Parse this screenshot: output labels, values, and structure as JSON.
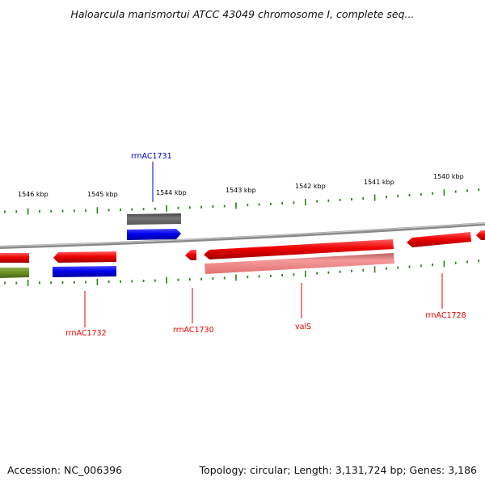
{
  "title": "Haloarcula marismortui ATCC 43049 chromosome I, complete seq...",
  "footer": {
    "accession": "Accession: NC_006396",
    "summary": "Topology: circular; Length: 3,131,724 bp; Genes: 3,186"
  },
  "kbp_labels": [
    "1546 kbp",
    "1545 kbp",
    "1544 kbp",
    "1543 kbp",
    "1542 kbp",
    "1541 kbp",
    "1540 kbp"
  ],
  "gene_labels": {
    "rrnAC1731": "rrnAC1731",
    "rrnAC1732": "rrnAC1732",
    "rrnAC1730": "rrnAC1730",
    "valS": "valS",
    "rrnAC1728": "rrnAC1728"
  },
  "colors": {
    "red": "#e60000",
    "pink": "#f08080",
    "blue": "#0000e0",
    "gray": "#666666",
    "olive": "#6b8e23",
    "tick": "#2e7d1e",
    "backbone": "#8a8a8a"
  }
}
